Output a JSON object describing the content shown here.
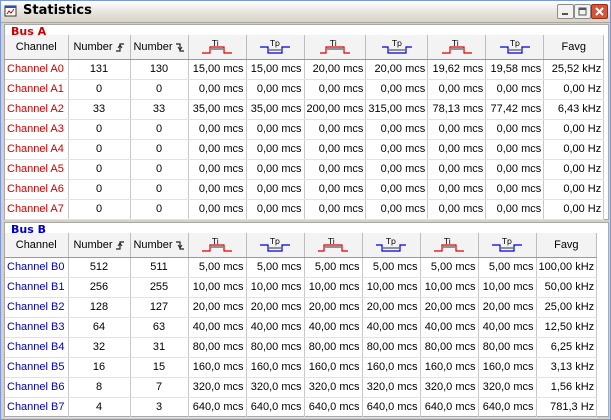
{
  "window": {
    "title": "Statistics",
    "icon": "statistics-window-icon"
  },
  "headers": {
    "channel": "Channel",
    "number_rise": "Number",
    "number_fall": "Number",
    "favg": "Favg",
    "ti": "Ti",
    "tp": "Tp"
  },
  "colors": {
    "bus_a": "#cc0000",
    "bus_b": "#0000bb",
    "pulse_red": "#dd0000",
    "pulse_blue": "#0000dd"
  },
  "bus_a": {
    "label": "Bus A",
    "rows": [
      {
        "name": "Channel A0",
        "n1": "131",
        "n2": "130",
        "c1": "15,00 mcs",
        "c2": "15,00 mcs",
        "c3": "20,00 mcs",
        "c4": "20,00 mcs",
        "c5": "19,62 mcs",
        "c6": "19,58 mcs",
        "favg": "25,52 kHz"
      },
      {
        "name": "Channel A1",
        "n1": "0",
        "n2": "0",
        "c1": "0,00 mcs",
        "c2": "0,00 mcs",
        "c3": "0,00 mcs",
        "c4": "0,00 mcs",
        "c5": "0,00 mcs",
        "c6": "0,00 mcs",
        "favg": "0,00 Hz"
      },
      {
        "name": "Channel A2",
        "n1": "33",
        "n2": "33",
        "c1": "35,00 mcs",
        "c2": "35,00 mcs",
        "c3": "200,00 mcs",
        "c4": "315,00 mcs",
        "c5": "78,13 mcs",
        "c6": "77,42 mcs",
        "favg": "6,43 kHz"
      },
      {
        "name": "Channel A3",
        "n1": "0",
        "n2": "0",
        "c1": "0,00 mcs",
        "c2": "0,00 mcs",
        "c3": "0,00 mcs",
        "c4": "0,00 mcs",
        "c5": "0,00 mcs",
        "c6": "0,00 mcs",
        "favg": "0,00 Hz"
      },
      {
        "name": "Channel A4",
        "n1": "0",
        "n2": "0",
        "c1": "0,00 mcs",
        "c2": "0,00 mcs",
        "c3": "0,00 mcs",
        "c4": "0,00 mcs",
        "c5": "0,00 mcs",
        "c6": "0,00 mcs",
        "favg": "0,00 Hz"
      },
      {
        "name": "Channel A5",
        "n1": "0",
        "n2": "0",
        "c1": "0,00 mcs",
        "c2": "0,00 mcs",
        "c3": "0,00 mcs",
        "c4": "0,00 mcs",
        "c5": "0,00 mcs",
        "c6": "0,00 mcs",
        "favg": "0,00 Hz"
      },
      {
        "name": "Channel A6",
        "n1": "0",
        "n2": "0",
        "c1": "0,00 mcs",
        "c2": "0,00 mcs",
        "c3": "0,00 mcs",
        "c4": "0,00 mcs",
        "c5": "0,00 mcs",
        "c6": "0,00 mcs",
        "favg": "0,00 Hz"
      },
      {
        "name": "Channel A7",
        "n1": "0",
        "n2": "0",
        "c1": "0,00 mcs",
        "c2": "0,00 mcs",
        "c3": "0,00 mcs",
        "c4": "0,00 mcs",
        "c5": "0,00 mcs",
        "c6": "0,00 mcs",
        "favg": "0,00 Hz"
      }
    ]
  },
  "bus_b": {
    "label": "Bus B",
    "rows": [
      {
        "name": "Channel B0",
        "n1": "512",
        "n2": "511",
        "c1": "5,00 mcs",
        "c2": "5,00 mcs",
        "c3": "5,00 mcs",
        "c4": "5,00 mcs",
        "c5": "5,00 mcs",
        "c6": "5,00 mcs",
        "favg": "100,00 kHz"
      },
      {
        "name": "Channel B1",
        "n1": "256",
        "n2": "255",
        "c1": "10,00 mcs",
        "c2": "10,00 mcs",
        "c3": "10,00 mcs",
        "c4": "10,00 mcs",
        "c5": "10,00 mcs",
        "c6": "10,00 mcs",
        "favg": "50,00 kHz"
      },
      {
        "name": "Channel B2",
        "n1": "128",
        "n2": "127",
        "c1": "20,00 mcs",
        "c2": "20,00 mcs",
        "c3": "20,00 mcs",
        "c4": "20,00 mcs",
        "c5": "20,00 mcs",
        "c6": "20,00 mcs",
        "favg": "25,00 kHz"
      },
      {
        "name": "Channel B3",
        "n1": "64",
        "n2": "63",
        "c1": "40,00 mcs",
        "c2": "40,00 mcs",
        "c3": "40,00 mcs",
        "c4": "40,00 mcs",
        "c5": "40,00 mcs",
        "c6": "40,00 mcs",
        "favg": "12,50 kHz"
      },
      {
        "name": "Channel B4",
        "n1": "32",
        "n2": "31",
        "c1": "80,00 mcs",
        "c2": "80,00 mcs",
        "c3": "80,00 mcs",
        "c4": "80,00 mcs",
        "c5": "80,00 mcs",
        "c6": "80,00 mcs",
        "favg": "6,25 kHz"
      },
      {
        "name": "Channel B5",
        "n1": "16",
        "n2": "15",
        "c1": "160,0 mcs",
        "c2": "160,0 mcs",
        "c3": "160,0 mcs",
        "c4": "160,0 mcs",
        "c5": "160,0 mcs",
        "c6": "160,0 mcs",
        "favg": "3,13 kHz"
      },
      {
        "name": "Channel B6",
        "n1": "8",
        "n2": "7",
        "c1": "320,0 mcs",
        "c2": "320,0 mcs",
        "c3": "320,0 mcs",
        "c4": "320,0 mcs",
        "c5": "320,0 mcs",
        "c6": "320,0 mcs",
        "favg": "1,56 kHz"
      },
      {
        "name": "Channel B7",
        "n1": "4",
        "n2": "3",
        "c1": "640,0 mcs",
        "c2": "640,0 mcs",
        "c3": "640,0 mcs",
        "c4": "640,0 mcs",
        "c5": "640,0 mcs",
        "c6": "640,0 mcs",
        "favg": "781,3 Hz"
      }
    ]
  }
}
